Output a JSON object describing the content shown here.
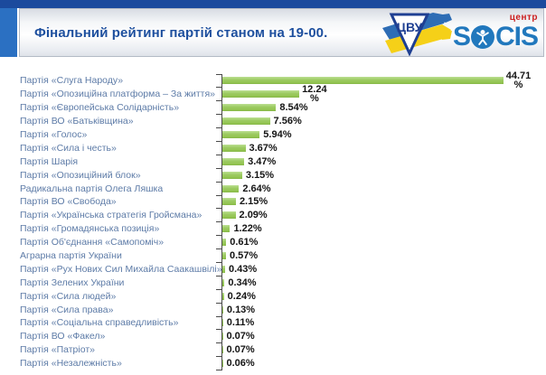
{
  "header": {
    "title": "Фінальний рейтинг партій станом на 19-00.",
    "logo": {
      "center_label": "центр",
      "brand_prefix": "S",
      "brand_suffix": "CIS",
      "brand_full": "SOCIS",
      "triangle_monogram": "ЦВУ"
    }
  },
  "colors": {
    "top_bar": "#1b4a9d",
    "left_stripe": "#2b70c2",
    "title_blue": "#1d4f9e",
    "label_blue": "#5d7ba7",
    "bar_green": "#94c553",
    "brand_blue": "#2178bd",
    "center_red": "#cc1f1f",
    "axis_gray": "#4a4a4a"
  },
  "chart_data": {
    "type": "bar",
    "orientation": "horizontal",
    "title": "Фінальний рейтинг партій станом на 19-00.",
    "unit": "%",
    "xlim": [
      0,
      47
    ],
    "grid": false,
    "legend": false,
    "categories": [
      "Партія «Слуга Народу»",
      "Партія «Опозиційна платформа – За життя»",
      "Партія «Європейська Солідарність»",
      "Партія ВО «Батьківщина»",
      "Партія «Голос»",
      "Партія «Сила і честь»",
      "Партія Шарія",
      "Партія «Опозиційний блок»",
      "Радикальна партія Олега Ляшка",
      "Партія ВО «Свобода»",
      "Партія «Українська стратегія Гройсмана»",
      "Партія «Громадянська позиція»",
      "Партія Об'єднання «Самопоміч»",
      "Аграрна партія України",
      "Партія «Рух Нових Сил Михайла Саакашвілі»",
      "Партія Зелених України",
      "Партія «Сила людей»",
      "Партія «Сила права»",
      "Партія «Соціальна справедливість»",
      "Партія ВО «Факел»",
      "Партія «Патріот»",
      "Партія «Незалежність»"
    ],
    "values": [
      44.71,
      12.24,
      8.54,
      7.56,
      5.94,
      3.67,
      3.47,
      3.15,
      2.64,
      2.15,
      2.09,
      1.22,
      0.61,
      0.57,
      0.43,
      0.34,
      0.24,
      0.13,
      0.11,
      0.07,
      0.07,
      0.06
    ],
    "value_labels": [
      "44.71%",
      "12.24%",
      "8.54%",
      "7.56%",
      "5.94%",
      "3.67%",
      "3.47%",
      "3.15%",
      "2.64%",
      "2.15%",
      "2.09%",
      "1.22%",
      "0.61%",
      "0.57%",
      "0.43%",
      "0.34%",
      "0.24%",
      "0.13%",
      "0.11%",
      "0.07%",
      "0.07%",
      "0.06%"
    ],
    "wrapped_label_rows": [
      0,
      1
    ]
  }
}
